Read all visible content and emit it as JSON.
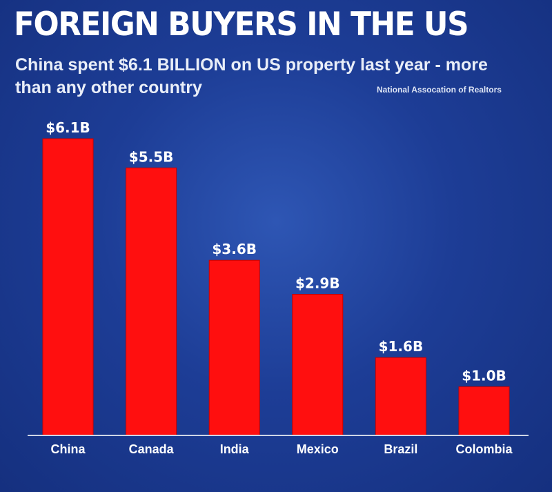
{
  "header": {
    "title": "FOREIGN BUYERS IN THE US",
    "subtitle": "China spent $6.1 BILLION on US property last year - more than any other country",
    "source": "National Assocation of Realtors"
  },
  "chart_data": {
    "type": "bar",
    "categories": [
      "China",
      "Canada",
      "India",
      "Mexico",
      "Brazil",
      "Colombia"
    ],
    "values": [
      6.1,
      5.5,
      3.6,
      2.9,
      1.6,
      1.0
    ],
    "value_labels": [
      "$6.1B",
      "$5.5B",
      "$3.6B",
      "$2.9B",
      "$1.6B",
      "$1.0B"
    ],
    "unit": "billion USD",
    "ylim": [
      0,
      6.1
    ],
    "grid": false,
    "legend": "none",
    "bar_color": "#ff0f0f",
    "background_color": "#1d3d96"
  }
}
